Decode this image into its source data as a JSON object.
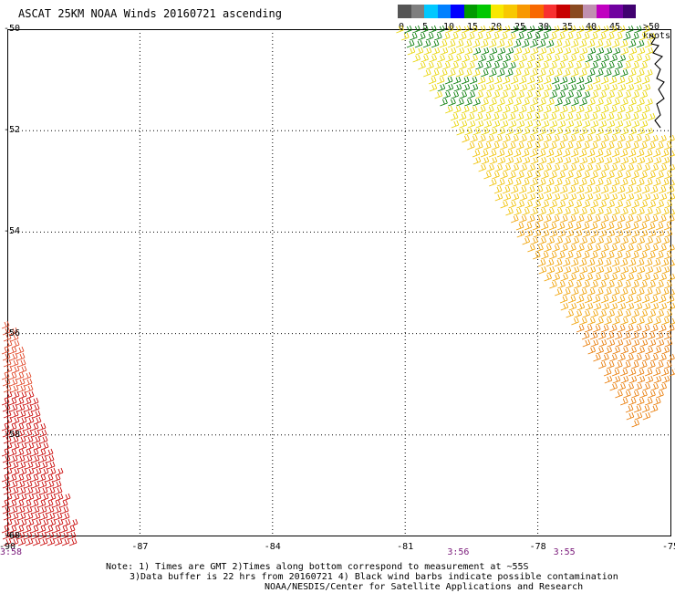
{
  "title": "ASCAT 25KM NOAA Winds 20160721 ascending",
  "legend": {
    "colors": [
      "#555555",
      "#7f7f7f",
      "#00c8ff",
      "#0080ff",
      "#0000ff",
      "#009a00",
      "#00c800",
      "#f8e800",
      "#f8c800",
      "#f89800",
      "#f86800",
      "#f83030",
      "#c80000",
      "#8a4a20",
      "#c090b0",
      "#c000c0",
      "#7000a0",
      "#400070"
    ],
    "labels": [
      "0",
      "5",
      "10",
      "15",
      "20",
      "25",
      "30",
      "35",
      "40",
      "45",
      ">50 knots"
    ],
    "label_values": [
      0,
      5,
      10,
      15,
      20,
      25,
      30,
      35,
      40,
      45,
      50
    ]
  },
  "axes": {
    "lat_labels": [
      "-50",
      "-52",
      "-54",
      "-56",
      "-58",
      "-60"
    ],
    "lon_labels": [
      "-90",
      "-87",
      "-84",
      "-81",
      "-78",
      "-75"
    ],
    "lat_range": [
      -60,
      -50
    ],
    "lon_range": [
      -90,
      -75
    ]
  },
  "times": [
    {
      "label": "3:58",
      "lon": -90
    },
    {
      "label": "3:56",
      "lon": -79.8
    },
    {
      "label": "3:55",
      "lon": -77.4
    }
  ],
  "notes": {
    "line1": "Note: 1) Times are GMT 2)Times along bottom correspond to measurement at ~55S",
    "line2": "3)Data buffer is 22 hrs from 20160721 4) Black wind barbs indicate possible contamination",
    "line3": "NOAA/NESDIS/Center for Satellite Applications and Research"
  }
}
